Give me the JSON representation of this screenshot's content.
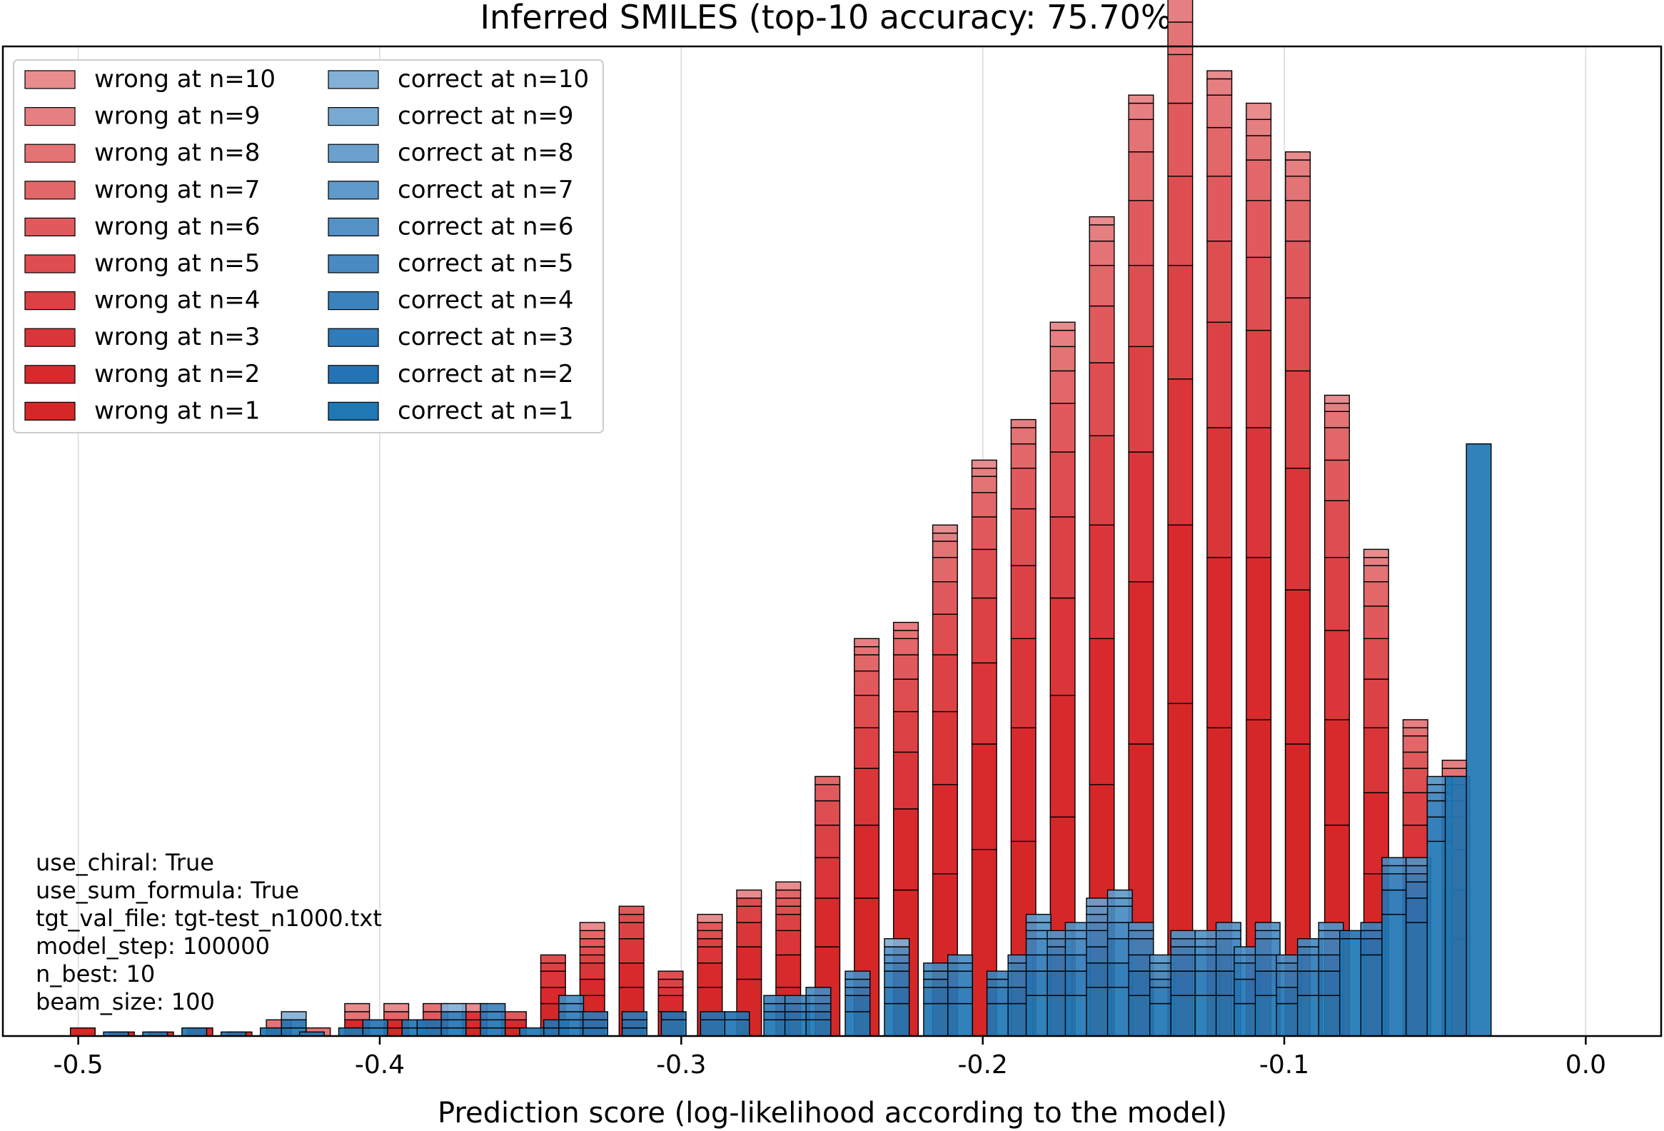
{
  "chart_data": {
    "type": "bar",
    "stacked": true,
    "title": "Inferred SMILES (top-10 accuracy: 75.70%)",
    "xlabel": "Prediction score (log-likelihood according to the model)",
    "ylabel": "",
    "xlim": [
      -0.525,
      0.025
    ],
    "ylim": [
      0,
      122
    ],
    "x_ticks": [
      {
        "value": -0.5,
        "label": "-0.5"
      },
      {
        "value": -0.4,
        "label": "-0.4"
      },
      {
        "value": -0.3,
        "label": "-0.3"
      },
      {
        "value": -0.2,
        "label": "-0.2"
      },
      {
        "value": -0.1,
        "label": "-0.1"
      },
      {
        "value": 0.0,
        "label": "0.0"
      }
    ],
    "grid": "vertical",
    "legend_position": "top-left",
    "legend": {
      "wrong": [
        "wrong at n=10",
        "wrong at n=9",
        "wrong at n=8",
        "wrong at n=7",
        "wrong at n=6",
        "wrong at n=5",
        "wrong at n=4",
        "wrong at n=3",
        "wrong at n=2",
        "wrong at n=1"
      ],
      "correct": [
        "correct at n=10",
        "correct at n=9",
        "correct at n=8",
        "correct at n=7",
        "correct at n=6",
        "correct at n=5",
        "correct at n=4",
        "correct at n=3",
        "correct at n=2",
        "correct at n=1"
      ]
    },
    "colors": {
      "wrong": [
        "#e88c8e",
        "#e67f82",
        "#e47375",
        "#e26769",
        "#e05a5d",
        "#de4e51",
        "#dc4245",
        "#da3639",
        "#d8292d",
        "#d62728"
      ],
      "correct": [
        "#83b0d6",
        "#78a9d2",
        "#6ca1ce",
        "#609aca",
        "#5492c6",
        "#488ac1",
        "#3c83bd",
        "#307bb9",
        "#2474b5",
        "#1f77b4"
      ]
    },
    "wrong_series": {
      "note": "",
      "x": [
        -0.4985,
        -0.4855,
        -0.4725,
        -0.4595,
        -0.4465,
        -0.4335,
        -0.4205,
        -0.4075,
        -0.3945,
        -0.3815,
        -0.3685,
        -0.3555,
        -0.3425,
        -0.3295,
        -0.3165,
        -0.3035,
        -0.2905,
        -0.2775,
        -0.2645,
        -0.2515,
        -0.2385,
        -0.2255,
        -0.2125,
        -0.1995,
        -0.1865,
        -0.1735,
        -0.1605,
        -0.1475,
        -0.1345,
        -0.1215,
        -0.1085,
        -0.0955,
        -0.0825,
        -0.0695,
        -0.0565,
        -0.0435
      ],
      "values": [
        [
          1,
          0,
          0,
          0,
          0,
          0,
          0,
          0,
          0,
          0
        ],
        [
          0.5,
          0,
          0,
          0,
          0,
          0,
          0,
          0,
          0,
          0
        ],
        [
          0.5,
          0,
          0,
          0,
          0,
          0,
          0,
          0,
          0,
          0
        ],
        [
          1,
          0,
          0,
          0,
          0,
          0,
          0,
          0,
          0,
          0
        ],
        [
          0.5,
          0,
          0,
          0,
          0,
          0,
          0,
          0,
          0,
          0
        ],
        [
          1,
          0,
          0,
          0,
          0,
          0,
          0,
          1,
          0,
          0
        ],
        [
          0,
          0,
          0,
          0,
          0,
          0,
          0,
          1,
          0,
          0
        ],
        [
          1,
          1,
          0,
          0,
          0,
          0,
          0,
          1,
          0,
          1
        ],
        [
          1,
          1,
          0,
          0,
          0,
          0,
          1,
          0,
          0,
          1
        ],
        [
          1,
          1,
          0,
          0,
          0,
          1,
          0,
          1,
          0,
          0
        ],
        [
          1,
          1,
          1,
          0,
          0,
          0,
          0,
          0,
          0,
          1
        ],
        [
          1,
          1,
          0,
          0,
          0,
          1,
          0,
          0,
          0,
          0
        ],
        [
          4,
          2,
          2,
          1,
          1,
          0,
          0,
          0,
          0,
          0
        ],
        [
          5,
          2,
          2,
          1,
          1,
          1,
          1,
          0,
          0,
          1
        ],
        [
          6,
          3,
          3,
          2,
          1,
          1,
          0,
          0,
          0,
          0
        ],
        [
          3,
          2,
          1,
          1,
          1,
          0,
          0,
          0,
          0,
          0
        ],
        [
          6,
          3,
          2,
          1,
          1,
          1,
          0,
          0,
          0,
          1
        ],
        [
          7,
          4,
          3,
          2,
          1,
          0,
          0,
          0,
          0,
          1
        ],
        [
          6,
          4,
          3,
          2,
          1,
          1,
          1,
          0,
          0,
          1
        ],
        [
          11,
          6,
          5,
          4,
          3,
          2,
          1,
          0,
          0,
          0
        ],
        [
          17,
          9,
          7,
          5,
          4,
          3,
          2,
          1,
          1,
          0
        ],
        [
          18,
          10,
          7,
          5,
          4,
          3,
          2,
          1,
          1,
          0
        ],
        [
          20,
          11,
          9,
          7,
          5,
          4,
          3,
          2,
          1,
          1
        ],
        [
          23,
          13,
          10,
          8,
          6,
          4,
          3,
          2,
          1,
          1
        ],
        [
          24,
          14,
          11,
          9,
          7,
          5,
          3,
          2,
          1,
          0
        ],
        [
          27,
          15,
          12,
          10,
          8,
          6,
          4,
          3,
          2,
          1
        ],
        [
          31,
          18,
          14,
          11,
          9,
          7,
          5,
          3,
          2,
          1
        ],
        [
          36,
          20,
          16,
          13,
          10,
          8,
          6,
          4,
          2,
          1
        ],
        [
          41,
          22,
          18,
          14,
          11,
          9,
          6,
          4,
          3,
          1
        ],
        [
          38,
          21,
          16,
          13,
          10,
          8,
          6,
          4,
          2,
          1
        ],
        [
          39,
          20,
          16,
          12,
          9,
          7,
          5,
          3,
          2,
          2
        ],
        [
          36,
          19,
          15,
          12,
          9,
          7,
          5,
          3,
          2,
          1
        ],
        [
          26,
          13,
          11,
          9,
          7,
          5,
          4,
          2,
          1,
          1
        ],
        [
          20,
          10,
          8,
          6,
          5,
          4,
          3,
          2,
          1,
          1
        ],
        [
          14,
          7,
          5,
          4,
          3,
          2,
          2,
          1,
          1,
          0
        ],
        [
          12,
          6,
          5,
          4,
          2,
          2,
          1,
          1,
          1,
          0
        ]
      ]
    },
    "correct_series": {
      "x": [
        -0.4875,
        -0.4745,
        -0.4615,
        -0.4485,
        -0.4355,
        -0.4285,
        -0.4225,
        -0.4095,
        -0.4015,
        -0.3885,
        -0.3835,
        -0.3755,
        -0.3625,
        -0.3495,
        -0.3415,
        -0.3365,
        -0.3285,
        -0.3155,
        -0.3025,
        -0.2895,
        -0.2815,
        -0.2685,
        -0.2615,
        -0.2545,
        -0.2415,
        -0.2285,
        -0.2155,
        -0.2075,
        -0.1945,
        -0.1875,
        -0.1815,
        -0.1745,
        -0.1685,
        -0.1615,
        -0.1545,
        -0.1475,
        -0.1405,
        -0.1335,
        -0.1255,
        -0.1185,
        -0.1125,
        -0.1055,
        -0.0985,
        -0.0915,
        -0.0845,
        -0.0775,
        -0.0705,
        -0.0635,
        -0.0555,
        -0.0485,
        -0.0425,
        -0.0355
      ],
      "values": [
        [
          0.5,
          0,
          0,
          0,
          0,
          0,
          0,
          0,
          0,
          0
        ],
        [
          0.5,
          0,
          0,
          0,
          0,
          0,
          0,
          0,
          0,
          0
        ],
        [
          1,
          0,
          0,
          0,
          0,
          0,
          0,
          0,
          0,
          0
        ],
        [
          0.5,
          0,
          0,
          0,
          0,
          0,
          0,
          0,
          0,
          0
        ],
        [
          1,
          0,
          0,
          0,
          0,
          0,
          0,
          0,
          0,
          0
        ],
        [
          1,
          1,
          0,
          0,
          0,
          0,
          0,
          0,
          0,
          1
        ],
        [
          0.5,
          0,
          0,
          0,
          0,
          0,
          0,
          0,
          0,
          0
        ],
        [
          1,
          0,
          0,
          0,
          0,
          0,
          0,
          0,
          0,
          0
        ],
        [
          1,
          1,
          0,
          0,
          0,
          0,
          0,
          0,
          0,
          0
        ],
        [
          1,
          1,
          0,
          0,
          0,
          0,
          0,
          0,
          0,
          0
        ],
        [
          1,
          1,
          0,
          0,
          0,
          0,
          0,
          0,
          0,
          0
        ],
        [
          1,
          1,
          1,
          0,
          0,
          0,
          0,
          0,
          0,
          1
        ],
        [
          1,
          1,
          1,
          1,
          0,
          0,
          0,
          0,
          0,
          0
        ],
        [
          1,
          0,
          0,
          0,
          0,
          0,
          0,
          0,
          0,
          0
        ],
        [
          1,
          1,
          0,
          0,
          0,
          0,
          0,
          0,
          0,
          0
        ],
        [
          1,
          1,
          1,
          1,
          1,
          0,
          0,
          0,
          0,
          0
        ],
        [
          1,
          1,
          1,
          0,
          0,
          0,
          0,
          0,
          0,
          0
        ],
        [
          1,
          1,
          1,
          0,
          0,
          0,
          0,
          0,
          0,
          0
        ],
        [
          2,
          1,
          0,
          0,
          0,
          0,
          0,
          0,
          0,
          0
        ],
        [
          2,
          1,
          0,
          0,
          0,
          0,
          0,
          0,
          0,
          0
        ],
        [
          2,
          1,
          0,
          0,
          0,
          0,
          0,
          0,
          0,
          0
        ],
        [
          2,
          1,
          1,
          1,
          0,
          0,
          0,
          0,
          0,
          0
        ],
        [
          2,
          1,
          1,
          1,
          0,
          0,
          0,
          0,
          0,
          0
        ],
        [
          2,
          1,
          1,
          1,
          1,
          0,
          0,
          0,
          0,
          0
        ],
        [
          3,
          2,
          1,
          1,
          1,
          0,
          0,
          0,
          0,
          0
        ],
        [
          4,
          2,
          2,
          1,
          1,
          1,
          0,
          0,
          0,
          1
        ],
        [
          4,
          2,
          1,
          1,
          1,
          0,
          0,
          0,
          0,
          0
        ],
        [
          4,
          2,
          2,
          1,
          1,
          0,
          0,
          0,
          0,
          0
        ],
        [
          4,
          2,
          1,
          1,
          0,
          0,
          0,
          0,
          0,
          0
        ],
        [
          4,
          2,
          2,
          1,
          1,
          0,
          0,
          0,
          0,
          0
        ],
        [
          5,
          3,
          2,
          2,
          1,
          1,
          1,
          0,
          0,
          0
        ],
        [
          5,
          3,
          2,
          1,
          1,
          1,
          0,
          0,
          0,
          0
        ],
        [
          5,
          3,
          2,
          2,
          1,
          1,
          0,
          0,
          0,
          0
        ],
        [
          6,
          3,
          2,
          2,
          1,
          1,
          1,
          1,
          0,
          0
        ],
        [
          6,
          3,
          3,
          2,
          2,
          1,
          1,
          0,
          0,
          0
        ],
        [
          5,
          3,
          2,
          2,
          1,
          1,
          0,
          0,
          0,
          0
        ],
        [
          4,
          2,
          1,
          1,
          1,
          1,
          0,
          0,
          0,
          0
        ],
        [
          5,
          3,
          2,
          1,
          1,
          1,
          0,
          0,
          0,
          0
        ],
        [
          5,
          3,
          2,
          1,
          1,
          1,
          0,
          0,
          0,
          0
        ],
        [
          5,
          3,
          2,
          2,
          1,
          1,
          0,
          0,
          0,
          0
        ],
        [
          4,
          3,
          2,
          1,
          1,
          0,
          0,
          0,
          0,
          0
        ],
        [
          5,
          3,
          2,
          2,
          1,
          1,
          0,
          0,
          0,
          0
        ],
        [
          4,
          2,
          2,
          1,
          1,
          0,
          0,
          0,
          0,
          0
        ],
        [
          5,
          3,
          2,
          1,
          1,
          0,
          0,
          0,
          0,
          0
        ],
        [
          5,
          3,
          2,
          2,
          1,
          1,
          0,
          0,
          0,
          0
        ],
        [
          12,
          1,
          0,
          0,
          0,
          0,
          0,
          0,
          0,
          0
        ],
        [
          10,
          2,
          1,
          1,
          0,
          0,
          0,
          0,
          0,
          0
        ],
        [
          15,
          3,
          2,
          1,
          1,
          0,
          0,
          0,
          0,
          0
        ],
        [
          14,
          3,
          2,
          1,
          1,
          1,
          0,
          0,
          0,
          0
        ],
        [
          24,
          3,
          2,
          1,
          1,
          1,
          0,
          0,
          0,
          0
        ],
        [
          32,
          0,
          0,
          0,
          0,
          0,
          0,
          0,
          0,
          0
        ],
        [
          73,
          0,
          0,
          0,
          0,
          0,
          0,
          0,
          0,
          0
        ]
      ]
    }
  },
  "info_box": [
    "use_chiral: True",
    "use_sum_formula: True",
    "tgt_val_file: tgt-test_n1000.txt",
    "model_step: 100000",
    "n_best: 10",
    "beam_size: 100"
  ]
}
